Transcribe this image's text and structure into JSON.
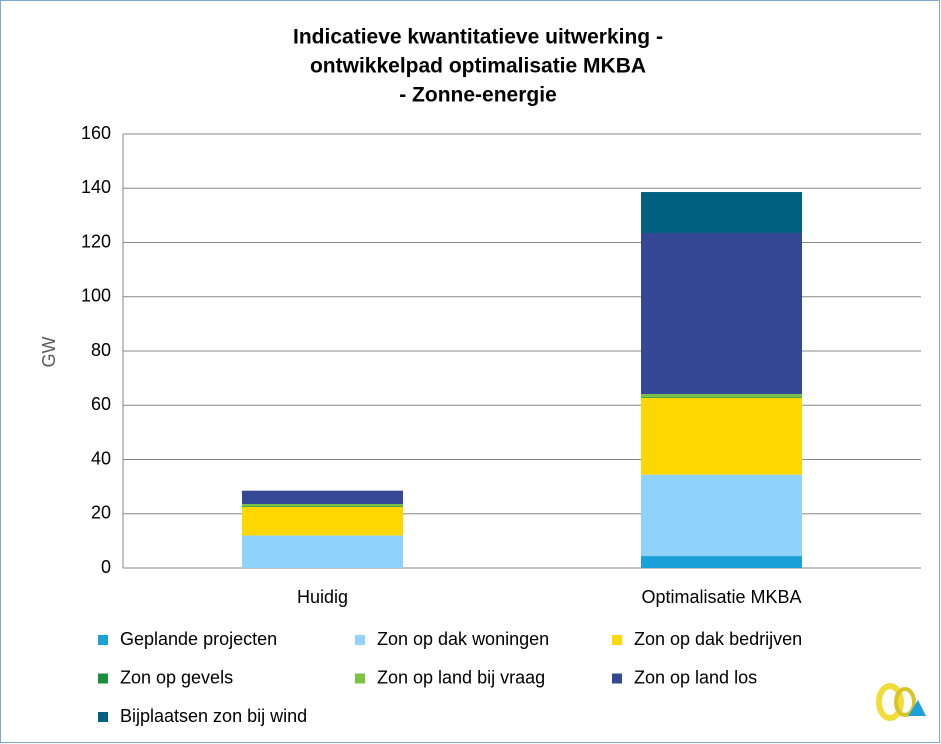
{
  "chart_data": {
    "type": "stacked_bar",
    "title": [
      "Indicatieve kwantitatieve uitwerking -",
      "ontwikkelpad optimalisatie MKBA",
      "- Zonne-energie"
    ],
    "y_label": "GW",
    "categories": [
      "Huidig",
      "Optimalisatie MKBA"
    ],
    "series": [
      {
        "name": "Geplande projecten",
        "color": "#1ba0d7",
        "values": [
          0,
          4.4
        ]
      },
      {
        "name": "Zon op dak woningen",
        "color": "#8fd3fa",
        "values": [
          12,
          30
        ]
      },
      {
        "name": "Zon op dak bedrijven",
        "color": "#ffd700",
        "values": [
          10.5,
          28.3
        ]
      },
      {
        "name": "Zon op gevels",
        "color": "#1a8f3c",
        "values": [
          0.3,
          0.3
        ]
      },
      {
        "name": "Zon op land bij vraag",
        "color": "#7cc242",
        "values": [
          0.8,
          1.1
        ]
      },
      {
        "name": "Zon op land los",
        "color": "#354896",
        "values": [
          4.9,
          59.4
        ]
      },
      {
        "name": "Bijplaatsen zon bij wind",
        "color": "#00607f",
        "values": [
          0,
          15.1
        ]
      }
    ],
    "ylim": [
      0,
      160
    ],
    "yticks": [
      0,
      20,
      40,
      60,
      80,
      100,
      120,
      140,
      160
    ],
    "grid": true
  }
}
